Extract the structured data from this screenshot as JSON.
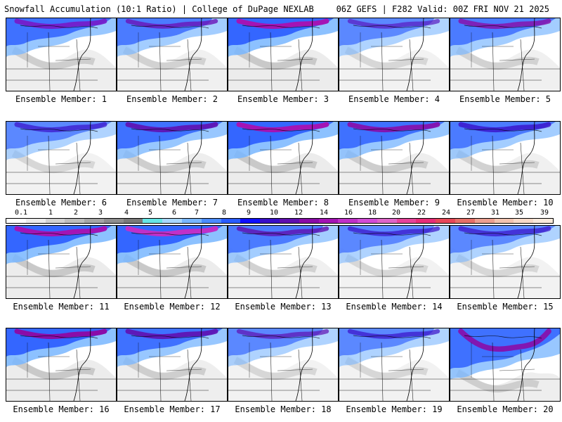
{
  "header": {
    "left": "Snowfall Accumulation (10:1 Ratio) | College of DuPage NEXLAB",
    "right": "06Z GEFS | F282 Valid: 00Z FRI NOV 21 2025"
  },
  "colorbar": {
    "labels": [
      "0.1",
      "1",
      "2",
      "3",
      "4",
      "5",
      "6",
      "7",
      "8",
      "9",
      "10",
      "12",
      "14",
      "16",
      "18",
      "20",
      "22",
      "24",
      "27",
      "31",
      "35",
      "39"
    ],
    "colors": [
      "#ffffff",
      "#ececec",
      "#d2d2d2",
      "#bdbdbd",
      "#a6a6a6",
      "#8f8f8f",
      "#7a7a7a",
      "#66e6e6",
      "#a8d8ff",
      "#78b6ff",
      "#4b8cff",
      "#2a5cff",
      "#1010ff",
      "#3a10c8",
      "#6010b0",
      "#8a0ca8",
      "#a414b4",
      "#c030c8",
      "#d24cd6",
      "#de66c8",
      "#e6449a",
      "#e82e78",
      "#e84858",
      "#e67068",
      "#eca090",
      "#f2c4b0",
      "#f7dac8",
      "#faeadc"
    ]
  },
  "panels": [
    {
      "caption": "Ensemble Member: 1"
    },
    {
      "caption": "Ensemble Member: 2"
    },
    {
      "caption": "Ensemble Member: 3"
    },
    {
      "caption": "Ensemble Member: 4"
    },
    {
      "caption": "Ensemble Member: 5"
    },
    {
      "caption": "Ensemble Member: 6"
    },
    {
      "caption": "Ensemble Member: 7"
    },
    {
      "caption": "Ensemble Member: 8"
    },
    {
      "caption": "Ensemble Member: 9"
    },
    {
      "caption": "Ensemble Member: 10"
    },
    {
      "caption": "Ensemble Member: 11"
    },
    {
      "caption": "Ensemble Member: 12"
    },
    {
      "caption": "Ensemble Member: 13"
    },
    {
      "caption": "Ensemble Member: 14"
    },
    {
      "caption": "Ensemble Member: 15"
    },
    {
      "caption": "Ensemble Member: 16"
    },
    {
      "caption": "Ensemble Member: 17"
    },
    {
      "caption": "Ensemble Member: 18"
    },
    {
      "caption": "Ensemble Member: 19"
    },
    {
      "caption": "Ensemble Member: 20"
    }
  ]
}
